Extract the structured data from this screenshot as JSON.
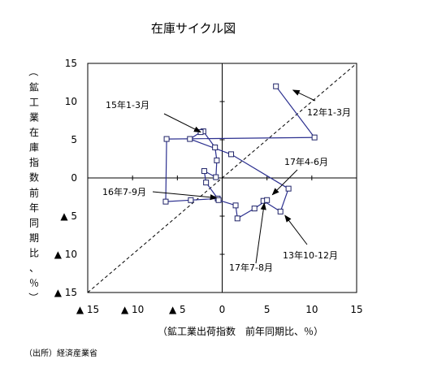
{
  "chart_data": {
    "type": "scatter",
    "title": "在庫サイクル図",
    "xlabel": "（鉱工業出荷指数　前年同期比、％）",
    "ylabel": "（鉱工業在庫指数　前年同期比、％）",
    "xlim": [
      -15,
      15
    ],
    "ylim": [
      -15,
      15
    ],
    "x_ticks": [
      {
        "value": -15,
        "label": "▲ 15"
      },
      {
        "value": -10,
        "label": "▲ 10"
      },
      {
        "value": -5,
        "label": "▲ 5"
      },
      {
        "value": 0,
        "label": "0"
      },
      {
        "value": 5,
        "label": "5"
      },
      {
        "value": 10,
        "label": "10"
      },
      {
        "value": 15,
        "label": "15"
      }
    ],
    "y_ticks": [
      {
        "value": 15,
        "label": "15"
      },
      {
        "value": 10,
        "label": "10"
      },
      {
        "value": 5,
        "label": "5"
      },
      {
        "value": 0,
        "label": "0"
      },
      {
        "value": -5,
        "label": "▲ 5"
      },
      {
        "value": -10,
        "label": "▲ 10"
      },
      {
        "value": -15,
        "label": "▲ 15"
      }
    ],
    "grid": false,
    "reference_line": {
      "style": "dashed",
      "from": [
        -15,
        -15
      ],
      "to": [
        15,
        15
      ]
    },
    "series": [
      {
        "points": [
          {
            "x": 6.0,
            "y": 12.0
          },
          {
            "x": 10.3,
            "y": 5.3
          },
          {
            "x": -6.2,
            "y": 5.1
          },
          {
            "x": -6.3,
            "y": -3.1
          },
          {
            "x": -3.5,
            "y": -2.9
          },
          {
            "x": -0.5,
            "y": -2.7
          },
          {
            "x": -1.8,
            "y": -0.6
          },
          {
            "x": -2.0,
            "y": 0.9
          },
          {
            "x": -0.7,
            "y": 0.1
          },
          {
            "x": -0.6,
            "y": 2.3
          },
          {
            "x": -0.8,
            "y": 4.0
          },
          {
            "x": -2.1,
            "y": 6.1
          },
          {
            "x": -2.4,
            "y": 6.0
          },
          {
            "x": -3.6,
            "y": 5.1
          },
          {
            "x": 1.0,
            "y": 3.1
          },
          {
            "x": 7.4,
            "y": -1.4
          },
          {
            "x": 6.5,
            "y": -4.4
          },
          {
            "x": 4.6,
            "y": -3.0
          },
          {
            "x": 5.0,
            "y": -2.9
          },
          {
            "x": 3.6,
            "y": -4.0
          },
          {
            "x": 1.7,
            "y": -5.3
          },
          {
            "x": 1.5,
            "y": -3.6
          },
          {
            "x": -0.4,
            "y": -2.9
          }
        ]
      }
    ],
    "annotations": [
      {
        "text": "15年1-3月",
        "target": {
          "x": -2.4,
          "y": 6.0
        }
      },
      {
        "text": "12年1-3月",
        "target": {
          "x": 7.9,
          "y": 11.5
        }
      },
      {
        "text": "17年4-6月",
        "target": {
          "x": 5.6,
          "y": -2.2
        }
      },
      {
        "text": "16年7-9月",
        "target": {
          "x": -0.6,
          "y": -2.6
        }
      },
      {
        "text": "13年10-12月",
        "target": {
          "x": 7.0,
          "y": -4.9
        }
      },
      {
        "text": "17年7-8月",
        "target": {
          "x": 4.7,
          "y": -3.3
        }
      }
    ]
  },
  "source_note": "（出所）経済産業省"
}
